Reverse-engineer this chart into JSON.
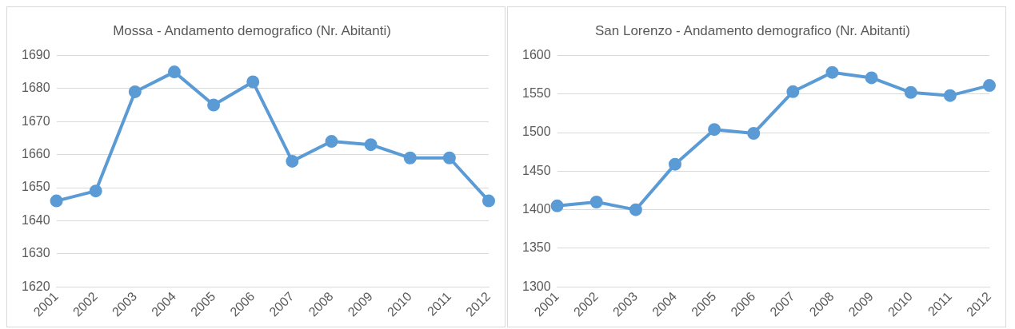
{
  "chart_data": [
    {
      "type": "line",
      "title": "Mossa - Andamento demografico (Nr. Abitanti)",
      "categories": [
        "2001",
        "2002",
        "2003",
        "2004",
        "2005",
        "2006",
        "2007",
        "2008",
        "2009",
        "2010",
        "2011",
        "2012"
      ],
      "series": [
        {
          "color": "#5b9bd5",
          "values": [
            1646,
            1649,
            1679,
            1685,
            1675,
            1682,
            1658,
            1664,
            1663,
            1659,
            1659,
            1646
          ]
        }
      ],
      "ylim": [
        1620,
        1690
      ],
      "yticks": [
        1620,
        1630,
        1640,
        1650,
        1660,
        1670,
        1680,
        1690
      ],
      "grid": "y",
      "marker": "circle"
    },
    {
      "type": "line",
      "title": "San Lorenzo - Andamento demografico (Nr. Abitanti)",
      "categories": [
        "2001",
        "2002",
        "2003",
        "2004",
        "2005",
        "2006",
        "2007",
        "2008",
        "2009",
        "2010",
        "2011",
        "2012"
      ],
      "series": [
        {
          "color": "#5b9bd5",
          "values": [
            1405,
            1410,
            1400,
            1459,
            1504,
            1499,
            1553,
            1578,
            1571,
            1552,
            1548,
            1561
          ]
        }
      ],
      "ylim": [
        1300,
        1600
      ],
      "yticks": [
        1300,
        1350,
        1400,
        1450,
        1500,
        1550,
        1600
      ],
      "grid": "y",
      "marker": "circle"
    }
  ]
}
